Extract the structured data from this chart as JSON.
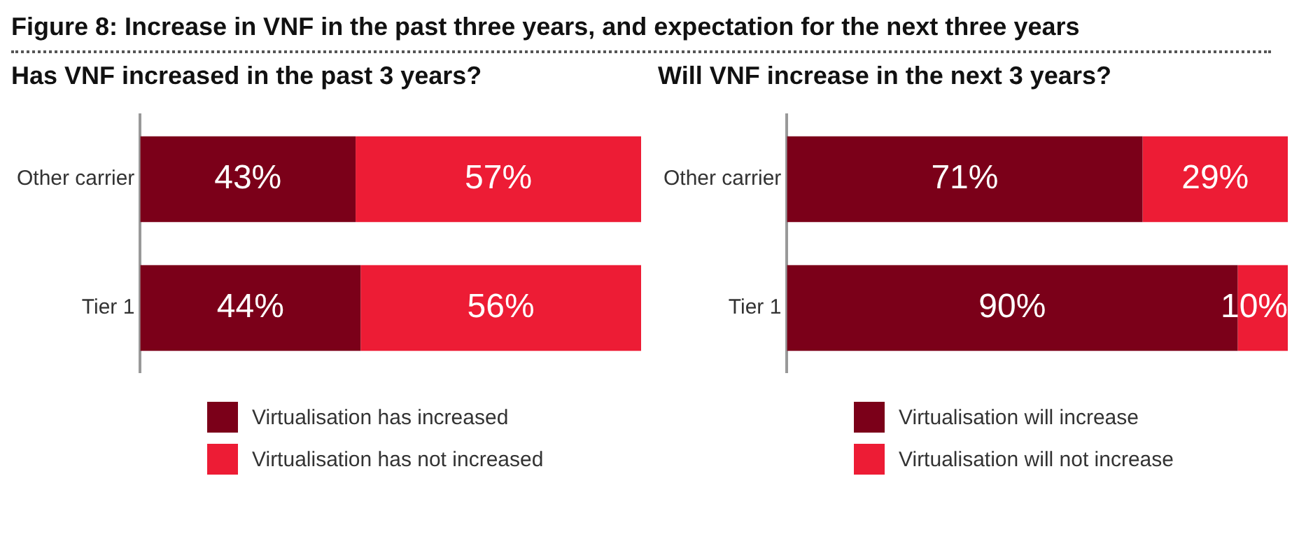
{
  "chart_data": [
    {
      "type": "bar",
      "title": "Figure 8: Increase in VNF in the past three years, and expectation for the next three years",
      "subtitle": "Has VNF increased in the past 3 years?",
      "orientation": "horizontal",
      "stacked": true,
      "categories": [
        "Other carrier",
        "Tier 1"
      ],
      "xlim": [
        0,
        100
      ],
      "tick_labels": "y",
      "legend": "bottom",
      "series": [
        {
          "name": "Virtualisation has increased",
          "color": "#7b0019",
          "values": [
            43,
            44
          ],
          "value_labels": [
            "43%",
            "44%"
          ]
        },
        {
          "name": "Virtualisation has not increased",
          "color": "#ed1c35",
          "values": [
            57,
            56
          ],
          "value_labels": [
            "57%",
            "56%"
          ]
        }
      ]
    },
    {
      "type": "bar",
      "subtitle": "Will VNF increase in the next 3 years?",
      "orientation": "horizontal",
      "stacked": true,
      "categories": [
        "Other carrier",
        "Tier 1"
      ],
      "xlim": [
        0,
        100
      ],
      "tick_labels": "y",
      "legend": "bottom",
      "series": [
        {
          "name": "Virtualisation will increase",
          "color": "#7b0019",
          "values": [
            71,
            90
          ],
          "value_labels": [
            "71%",
            "90%"
          ]
        },
        {
          "name": "Virtualisation will not increase",
          "color": "#ed1c35",
          "values": [
            29,
            10
          ],
          "value_labels": [
            "29%",
            "10%"
          ]
        }
      ]
    }
  ]
}
